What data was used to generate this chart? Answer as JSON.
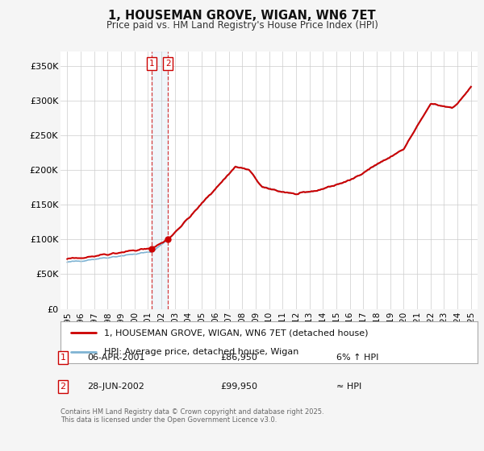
{
  "title": "1, HOUSEMAN GROVE, WIGAN, WN6 7ET",
  "subtitle": "Price paid vs. HM Land Registry's House Price Index (HPI)",
  "background_color": "#f5f5f5",
  "plot_bg_color": "#ffffff",
  "grid_color": "#cccccc",
  "hpi_line_color": "#7fb3d3",
  "price_line_color": "#cc0000",
  "sale1_date_num": 2001.27,
  "sale1_price": 86950,
  "sale1_label": "1",
  "sale1_date_str": "06-APR-2001",
  "sale1_price_str": "£86,950",
  "sale1_relation": "6% ↑ HPI",
  "sale2_date_num": 2002.49,
  "sale2_price": 99950,
  "sale2_label": "2",
  "sale2_date_str": "28-JUN-2002",
  "sale2_price_str": "£99,950",
  "sale2_relation": "≈ HPI",
  "ylim_min": 0,
  "ylim_max": 370000,
  "xlim_min": 1994.5,
  "xlim_max": 2025.5,
  "yticks": [
    0,
    50000,
    100000,
    150000,
    200000,
    250000,
    300000,
    350000
  ],
  "ytick_labels": [
    "£0",
    "£50K",
    "£100K",
    "£150K",
    "£200K",
    "£250K",
    "£300K",
    "£350K"
  ],
  "xticks": [
    1995,
    1996,
    1997,
    1998,
    1999,
    2000,
    2001,
    2002,
    2003,
    2004,
    2005,
    2006,
    2007,
    2008,
    2009,
    2010,
    2011,
    2012,
    2013,
    2014,
    2015,
    2016,
    2017,
    2018,
    2019,
    2020,
    2021,
    2022,
    2023,
    2024,
    2025
  ],
  "legend_label_price": "1, HOUSEMAN GROVE, WIGAN, WN6 7ET (detached house)",
  "legend_label_hpi": "HPI: Average price, detached house, Wigan",
  "footer_text": "Contains HM Land Registry data © Crown copyright and database right 2025.\nThis data is licensed under the Open Government Licence v3.0.",
  "shade_x_start": 2001.27,
  "shade_x_end": 2002.49
}
